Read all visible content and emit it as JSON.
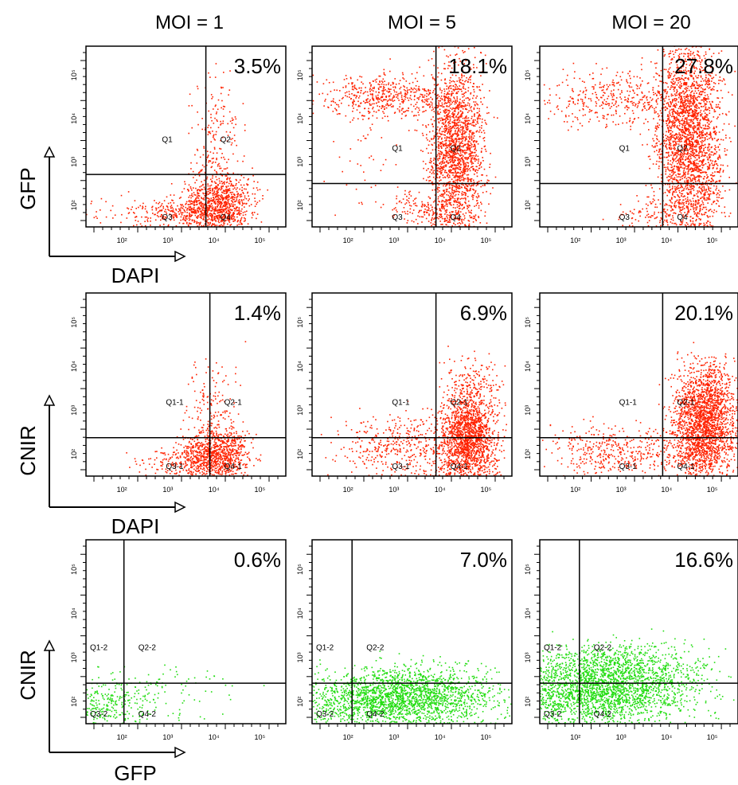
{
  "columns": [
    "MOI = 1",
    "MOI = 5",
    "MOI = 20"
  ],
  "rows": [
    {
      "y_axis": "GFP",
      "x_axis": "DAPI",
      "color": "#ff2200"
    },
    {
      "y_axis": "CNIR",
      "x_axis": "DAPI",
      "color": "#ff2200"
    },
    {
      "y_axis": "CNIR",
      "x_axis": "GFP",
      "color": "#22dd11"
    }
  ],
  "chart_data": {
    "type": "scatter",
    "subtype": "flow-cytometry-quadrant-grid",
    "x_scale": "log",
    "y_scale": "log",
    "tick_labels": [
      "10²",
      "10³",
      "10⁴",
      "10⁵"
    ],
    "panels": [
      {
        "row": 0,
        "col": 0,
        "percent": "3.5%",
        "quadrants": [
          "Q1",
          "Q2",
          "Q3",
          "Q4"
        ]
      },
      {
        "row": 0,
        "col": 1,
        "percent": "18.1%",
        "quadrants": [
          "Q1",
          "Q2",
          "Q3",
          "Q4"
        ]
      },
      {
        "row": 0,
        "col": 2,
        "percent": "27.8%",
        "quadrants": [
          "Q1",
          "Q2",
          "Q3",
          "Q4"
        ]
      },
      {
        "row": 1,
        "col": 0,
        "percent": "1.4%",
        "quadrants": [
          "Q1-1",
          "Q2-1",
          "Q3-1",
          "Q4-1"
        ]
      },
      {
        "row": 1,
        "col": 1,
        "percent": "6.9%",
        "quadrants": [
          "Q1-1",
          "Q2-1",
          "Q3-1",
          "Q4-1"
        ]
      },
      {
        "row": 1,
        "col": 2,
        "percent": "20.1%",
        "quadrants": [
          "Q1-1",
          "Q2-1",
          "Q3-1",
          "Q4-1"
        ]
      },
      {
        "row": 2,
        "col": 0,
        "percent": "0.6%",
        "quadrants": [
          "Q1-2",
          "Q2-2",
          "Q3-2",
          "Q4-2"
        ]
      },
      {
        "row": 2,
        "col": 1,
        "percent": "7.0%",
        "quadrants": [
          "Q1-2",
          "Q2-2",
          "Q3-2",
          "Q4-2"
        ]
      },
      {
        "row": 2,
        "col": 2,
        "percent": "16.6%",
        "quadrants": [
          "Q1-2",
          "Q2-2",
          "Q3-2",
          "Q4-2"
        ]
      }
    ]
  }
}
